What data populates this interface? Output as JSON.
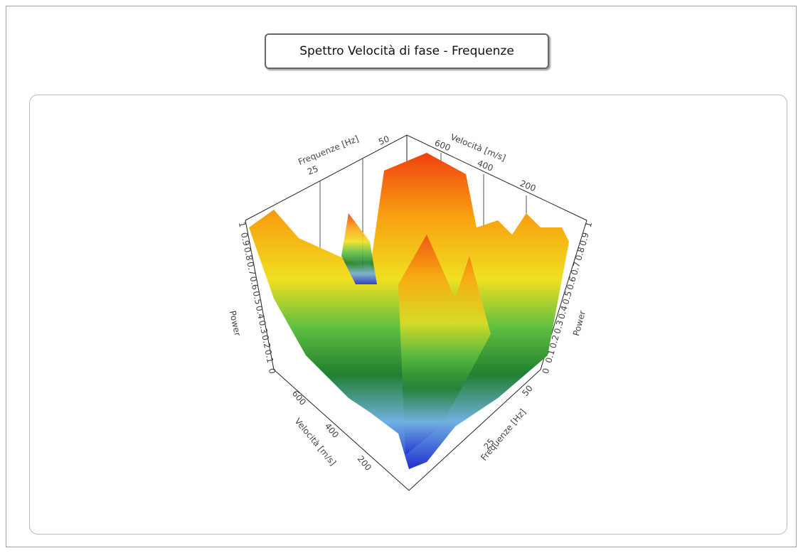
{
  "title": "Spettro Velocità di fase - Frequenze",
  "plot": {
    "top_frequency_axis": {
      "label": "Frequenze [Hz]",
      "ticks": [
        "25",
        "50"
      ]
    },
    "top_velocity_axis": {
      "label": "Velocità [m/s]",
      "ticks": [
        "600",
        "400",
        "200"
      ]
    },
    "left_power_axis": {
      "label": "Power",
      "ticks": [
        "1",
        "0.9",
        "0.8",
        "0.7",
        "0.6",
        "0.5",
        "0.4",
        "0.3",
        "0.2",
        "0.1",
        "0"
      ]
    },
    "right_power_axis": {
      "label": "Power",
      "ticks": [
        "1",
        "0.9",
        "0.8",
        "0.7",
        "0.6",
        "0.5",
        "0.4",
        "0.3",
        "0.2",
        "0.1",
        "0"
      ]
    },
    "bottom_velocity_axis": {
      "label": "Velocità [m/s]",
      "ticks": [
        "600",
        "400",
        "200"
      ]
    },
    "bottom_frequency_axis": {
      "label": "Frequenze [Hz]",
      "ticks": [
        "25",
        "50"
      ]
    }
  }
}
